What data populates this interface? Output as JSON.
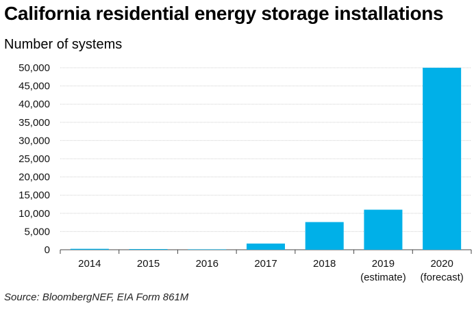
{
  "chart_data": {
    "type": "bar",
    "title": "California residential energy storage installations",
    "ylabel": "Number of systems",
    "xlabel": "",
    "source": "Source: BloombergNEF, EIA Form 861M",
    "categories": [
      [
        "2014"
      ],
      [
        "2015"
      ],
      [
        "2016"
      ],
      [
        "2017"
      ],
      [
        "2018"
      ],
      [
        "2019",
        "(estimate)"
      ],
      [
        "2020",
        "(forecast)"
      ]
    ],
    "values": [
      250,
      180,
      120,
      1700,
      7600,
      11000,
      50000
    ],
    "ylim": [
      0,
      50000
    ],
    "yticks": [
      "0",
      "5,000",
      "10,000",
      "15,000",
      "20,000",
      "25,000",
      "30,000",
      "35,000",
      "40,000",
      "45,000",
      "50,000"
    ],
    "grid": true,
    "bar_color": "#00b0e8",
    "grid_color": "#cfcfcf"
  }
}
